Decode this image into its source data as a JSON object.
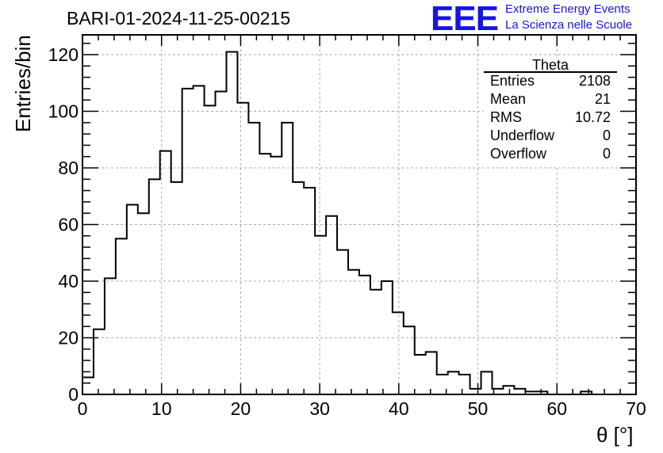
{
  "header": {
    "run_title": "BARI-01-2024-11-25-00215",
    "logo_text": "EEE",
    "logo_line1": "Extreme Energy Events",
    "logo_line2": "La Scienza nelle Scuole"
  },
  "stats": {
    "title": "Theta",
    "rows": [
      {
        "label": "Entries",
        "value": "2108"
      },
      {
        "label": "Mean",
        "value": "21"
      },
      {
        "label": "RMS",
        "value": "10.72"
      },
      {
        "label": "Underflow",
        "value": "0"
      },
      {
        "label": "Overflow",
        "value": "0"
      }
    ]
  },
  "colors": {
    "logo": "#1515e6",
    "grid": "#aaaaaa",
    "line": "#000000"
  },
  "chart_data": {
    "type": "bar",
    "style": "step-histogram",
    "xlabel": "θ [°]",
    "ylabel": "Entries/bin",
    "xlim": [
      0,
      70
    ],
    "ylim": [
      0,
      127
    ],
    "xticks": [
      0,
      10,
      20,
      30,
      40,
      50,
      60,
      70
    ],
    "yticks": [
      0,
      20,
      40,
      60,
      80,
      100,
      120
    ],
    "grid": true,
    "bin_width": 1.4,
    "bin_lower_edges": [
      0,
      1.4,
      2.8,
      4.2,
      5.6,
      7.0,
      8.4,
      9.8,
      11.2,
      12.6,
      14.0,
      15.4,
      16.8,
      18.2,
      19.6,
      21.0,
      22.4,
      23.8,
      25.2,
      26.6,
      28.0,
      29.4,
      30.8,
      32.2,
      33.6,
      35.0,
      36.4,
      37.8,
      39.2,
      40.6,
      42.0,
      43.4,
      44.8,
      46.2,
      47.6,
      49.0,
      50.4,
      51.8,
      53.2,
      54.6,
      56.0,
      57.4,
      58.8,
      60.2,
      61.6,
      63.0,
      64.4,
      65.8,
      67.2,
      68.6
    ],
    "values": [
      6,
      23,
      41,
      55,
      67,
      64,
      76,
      86,
      75,
      108,
      109,
      102,
      107,
      121,
      103,
      96,
      85,
      84,
      96,
      75,
      73,
      56,
      63,
      51,
      44,
      42,
      37,
      40,
      29,
      24,
      14,
      15,
      7,
      8,
      7,
      2,
      8,
      2,
      3,
      2,
      1,
      1,
      0,
      0,
      0,
      1,
      0,
      0,
      0,
      0
    ]
  }
}
